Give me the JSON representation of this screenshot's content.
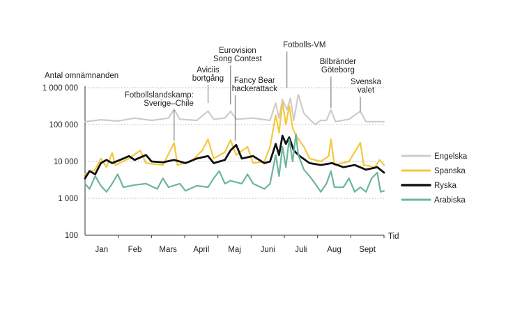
{
  "chart_data": {
    "type": "line",
    "ylabel": "Antal omnämnanden",
    "xlabel": "Tid",
    "yscale": "log",
    "ylim": [
      100,
      1000000
    ],
    "yticks": [
      {
        "value": 100,
        "label": "100"
      },
      {
        "value": 1000,
        "label": "1 000"
      },
      {
        "value": 10000,
        "label": "10 000"
      },
      {
        "value": 100000,
        "label": "100 000"
      },
      {
        "value": 1000000,
        "label": "1 000 000"
      }
    ],
    "grid": "horizontal dotted",
    "legend_position": "right",
    "months": [
      "Jan",
      "Feb",
      "Mars",
      "April",
      "Maj",
      "Juni",
      "Juli",
      "Aug",
      "Sept"
    ],
    "xlim_day": [
      1,
      266
    ],
    "annotations": [
      {
        "label": [
          "Fotbollslandskamp:",
          "Sverige–Chile"
        ],
        "day": 80
      },
      {
        "label": [
          "Aviciis",
          "bortgång"
        ],
        "day": 110
      },
      {
        "label": [
          "Eurovision",
          "Song Contest"
        ],
        "day": 130
      },
      {
        "label": [
          "Fancy Bear",
          "hackerattack"
        ],
        "day": 134
      },
      {
        "label": [
          "Fotbolls-VM"
        ],
        "day": 180
      },
      {
        "label": [
          "Bilbränder",
          "Göteborg"
        ],
        "day": 219
      },
      {
        "label": [
          "Svenska",
          "valet"
        ],
        "day": 245
      }
    ],
    "series": [
      {
        "name": "Engelska",
        "color": "#cfcbc6",
        "width": 2.2,
        "points": [
          [
            1,
            120000
          ],
          [
            15,
            135000
          ],
          [
            30,
            125000
          ],
          [
            45,
            150000
          ],
          [
            60,
            130000
          ],
          [
            75,
            150000
          ],
          [
            80,
            260000
          ],
          [
            85,
            140000
          ],
          [
            100,
            130000
          ],
          [
            110,
            230000
          ],
          [
            115,
            140000
          ],
          [
            125,
            150000
          ],
          [
            130,
            230000
          ],
          [
            135,
            140000
          ],
          [
            150,
            150000
          ],
          [
            165,
            130000
          ],
          [
            170,
            380000
          ],
          [
            173,
            150000
          ],
          [
            176,
            480000
          ],
          [
            180,
            250000
          ],
          [
            183,
            520000
          ],
          [
            186,
            130000
          ],
          [
            190,
            650000
          ],
          [
            195,
            200000
          ],
          [
            200,
            140000
          ],
          [
            205,
            100000
          ],
          [
            210,
            130000
          ],
          [
            215,
            130000
          ],
          [
            219,
            250000
          ],
          [
            223,
            120000
          ],
          [
            235,
            140000
          ],
          [
            245,
            230000
          ],
          [
            250,
            120000
          ],
          [
            266,
            120000
          ]
        ]
      },
      {
        "name": "Spanska",
        "color": "#f5c83c",
        "width": 2.2,
        "points": [
          [
            1,
            4500
          ],
          [
            10,
            6000
          ],
          [
            15,
            12000
          ],
          [
            20,
            7000
          ],
          [
            25,
            17000
          ],
          [
            28,
            8000
          ],
          [
            40,
            12000
          ],
          [
            50,
            20000
          ],
          [
            55,
            9000
          ],
          [
            70,
            8000
          ],
          [
            80,
            32000
          ],
          [
            83,
            8000
          ],
          [
            95,
            10000
          ],
          [
            105,
            20000
          ],
          [
            110,
            40000
          ],
          [
            115,
            12000
          ],
          [
            125,
            18000
          ],
          [
            130,
            38000
          ],
          [
            135,
            15000
          ],
          [
            145,
            25000
          ],
          [
            150,
            9000
          ],
          [
            160,
            10000
          ],
          [
            165,
            25000
          ],
          [
            170,
            180000
          ],
          [
            173,
            60000
          ],
          [
            176,
            400000
          ],
          [
            179,
            100000
          ],
          [
            182,
            320000
          ],
          [
            185,
            80000
          ],
          [
            188,
            50000
          ],
          [
            195,
            25000
          ],
          [
            200,
            12000
          ],
          [
            210,
            10000
          ],
          [
            217,
            14000
          ],
          [
            219,
            40000
          ],
          [
            222,
            8000
          ],
          [
            235,
            10000
          ],
          [
            245,
            32000
          ],
          [
            248,
            8000
          ],
          [
            258,
            7000
          ],
          [
            262,
            11000
          ],
          [
            266,
            8000
          ]
        ]
      },
      {
        "name": "Ryska",
        "color": "#111111",
        "width": 2.8,
        "points": [
          [
            1,
            3500
          ],
          [
            5,
            5500
          ],
          [
            10,
            4500
          ],
          [
            15,
            9000
          ],
          [
            20,
            11000
          ],
          [
            25,
            9000
          ],
          [
            35,
            12000
          ],
          [
            40,
            14000
          ],
          [
            45,
            11000
          ],
          [
            55,
            15000
          ],
          [
            60,
            10000
          ],
          [
            70,
            9500
          ],
          [
            80,
            11000
          ],
          [
            90,
            9000
          ],
          [
            100,
            12000
          ],
          [
            110,
            14000
          ],
          [
            115,
            9000
          ],
          [
            125,
            11000
          ],
          [
            130,
            20000
          ],
          [
            135,
            28000
          ],
          [
            140,
            12000
          ],
          [
            150,
            14000
          ],
          [
            160,
            9000
          ],
          [
            165,
            10000
          ],
          [
            170,
            30000
          ],
          [
            173,
            15000
          ],
          [
            176,
            50000
          ],
          [
            179,
            30000
          ],
          [
            182,
            45000
          ],
          [
            186,
            20000
          ],
          [
            190,
            15000
          ],
          [
            200,
            9000
          ],
          [
            210,
            8000
          ],
          [
            220,
            9000
          ],
          [
            230,
            7000
          ],
          [
            240,
            8000
          ],
          [
            250,
            6000
          ],
          [
            260,
            7000
          ],
          [
            266,
            5000
          ]
        ]
      },
      {
        "name": "Arabiska",
        "color": "#6db59b",
        "width": 2.2,
        "points": [
          [
            1,
            2500
          ],
          [
            5,
            1800
          ],
          [
            10,
            4000
          ],
          [
            15,
            2200
          ],
          [
            20,
            1500
          ],
          [
            25,
            2500
          ],
          [
            30,
            4500
          ],
          [
            35,
            2000
          ],
          [
            45,
            2300
          ],
          [
            55,
            2500
          ],
          [
            65,
            1800
          ],
          [
            70,
            3500
          ],
          [
            75,
            2000
          ],
          [
            85,
            2500
          ],
          [
            90,
            1600
          ],
          [
            100,
            2200
          ],
          [
            110,
            2000
          ],
          [
            115,
            3500
          ],
          [
            120,
            5500
          ],
          [
            125,
            2500
          ],
          [
            130,
            3000
          ],
          [
            140,
            2500
          ],
          [
            145,
            4500
          ],
          [
            150,
            2500
          ],
          [
            160,
            1800
          ],
          [
            165,
            2500
          ],
          [
            170,
            15000
          ],
          [
            173,
            4000
          ],
          [
            176,
            25000
          ],
          [
            179,
            7000
          ],
          [
            182,
            40000
          ],
          [
            185,
            10000
          ],
          [
            188,
            55000
          ],
          [
            190,
            15000
          ],
          [
            195,
            6000
          ],
          [
            200,
            4000
          ],
          [
            205,
            2500
          ],
          [
            210,
            1500
          ],
          [
            215,
            2500
          ],
          [
            219,
            5500
          ],
          [
            222,
            2000
          ],
          [
            230,
            2000
          ],
          [
            235,
            3500
          ],
          [
            240,
            1500
          ],
          [
            245,
            2000
          ],
          [
            250,
            1500
          ],
          [
            255,
            3500
          ],
          [
            260,
            5000
          ],
          [
            263,
            1500
          ],
          [
            266,
            1600
          ]
        ]
      }
    ]
  }
}
